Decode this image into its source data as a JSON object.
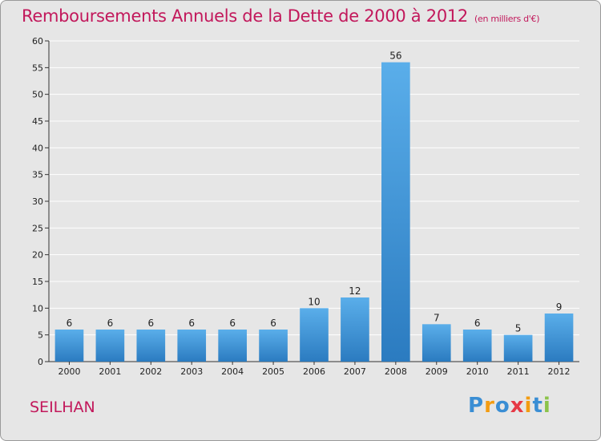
{
  "title": "Remboursements Annuels de la Dette de 2000 à 2012",
  "subtitle": "(en milliers d'€)",
  "commune": "SEILHAN",
  "logo": {
    "text": "Proxiti",
    "letters": [
      "P",
      "r",
      "o",
      "x",
      "i",
      "t",
      "i"
    ],
    "colors": [
      "#3a8ed4",
      "#f39c12",
      "#3a8ed4",
      "#e63946",
      "#f39c12",
      "#3a8ed4",
      "#8bc34a"
    ]
  },
  "colors": {
    "title": "#c2185b",
    "bar_top": "#5aaeea",
    "bar_bottom": "#2b7bc0",
    "background": "#e6e6e6",
    "grid": "#ffffff"
  },
  "chart_data": {
    "type": "bar",
    "categories": [
      "2000",
      "2001",
      "2002",
      "2003",
      "2004",
      "2005",
      "2006",
      "2007",
      "2008",
      "2009",
      "2010",
      "2011",
      "2012"
    ],
    "values": [
      6,
      6,
      6,
      6,
      6,
      6,
      10,
      12,
      56,
      7,
      6,
      5,
      9
    ],
    "ylim": [
      0,
      60
    ],
    "yticks": [
      0,
      5,
      10,
      15,
      20,
      25,
      30,
      35,
      40,
      45,
      50,
      55,
      60
    ],
    "grid": true,
    "legend": "none"
  }
}
